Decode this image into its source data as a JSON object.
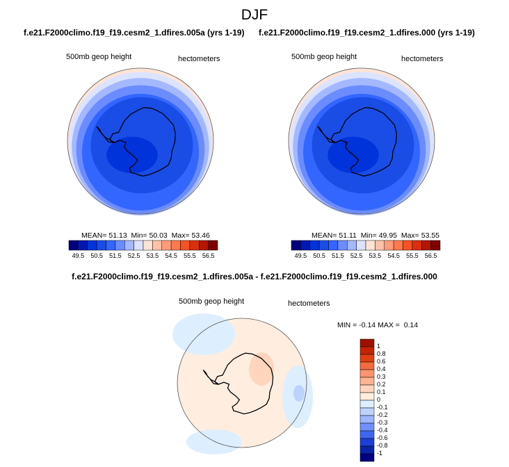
{
  "figure": {
    "title": "DJF"
  },
  "chart_data": [
    {
      "type": "heatmap",
      "title": "f.e21.F2000climo.f19_f19.cesm2_1.dfires.005a (yrs 1-19)",
      "variable": "500mb geop height",
      "units": "hectometers",
      "projection": "polar stereographic, southern hemisphere",
      "stats": {
        "mean_label": "MEAN=",
        "mean": "51.13",
        "min_label": "Min=",
        "min": "50.03",
        "max_label": "Max=",
        "max": "53.46"
      },
      "colorbar": {
        "tick_labels": [
          "49.5",
          "50.5",
          "51.5",
          "52.5",
          "53.5",
          "54.5",
          "55.5",
          "56.5"
        ],
        "colors": [
          "#00007f",
          "#0019b3",
          "#0033d9",
          "#1a4de6",
          "#3366ff",
          "#6b8cff",
          "#a3b8ff",
          "#dbe3ff",
          "#ffe4d6",
          "#ffc2a8",
          "#ff9c7a",
          "#ff7a4d",
          "#f55226",
          "#d93010",
          "#b31700",
          "#7f0000"
        ]
      }
    },
    {
      "type": "heatmap",
      "title": "f.e21.F2000climo.f19_f19.cesm2_1.dfires.000 (yrs 1-19)",
      "variable": "500mb geop height",
      "units": "hectometers",
      "projection": "polar stereographic, southern hemisphere",
      "stats": {
        "mean_label": "MEAN=",
        "mean": "51.11",
        "min_label": "Min=",
        "min": "49.95",
        "max_label": "Max=",
        "max": "53.55"
      },
      "colorbar": {
        "tick_labels": [
          "49.5",
          "50.5",
          "51.5",
          "52.5",
          "53.5",
          "54.5",
          "55.5",
          "56.5"
        ],
        "colors": [
          "#00007f",
          "#0019b3",
          "#0033d9",
          "#1a4de6",
          "#3366ff",
          "#6b8cff",
          "#a3b8ff",
          "#dbe3ff",
          "#ffe4d6",
          "#ffc2a8",
          "#ff9c7a",
          "#ff7a4d",
          "#f55226",
          "#d93010",
          "#b31700",
          "#7f0000"
        ]
      }
    },
    {
      "type": "heatmap",
      "title": "f.e21.F2000climo.f19_f19.cesm2_1.dfires.005a - f.e21.F2000climo.f19_f19.cesm2_1.dfires.000",
      "variable": "500mb geop height",
      "units": "hectometers",
      "projection": "polar stereographic, southern hemisphere",
      "stats": {
        "min_label": "MIN =",
        "min": "-0.14",
        "max_label": "MAX =",
        "max": "0.14"
      },
      "colorbar": {
        "orientation": "vertical",
        "tick_labels": [
          "1",
          "0.8",
          "0.6",
          "0.4",
          "0.3",
          "0.2",
          "0.1",
          "0",
          "-0.1",
          "-0.2",
          "-0.3",
          "-0.4",
          "-0.6",
          "-0.8",
          "-1"
        ],
        "colors": [
          "#a01000",
          "#c42400",
          "#e04010",
          "#f56a40",
          "#ff9470",
          "#ffb494",
          "#ffd5bd",
          "#ffeee0",
          "#ddeeff",
          "#bed2ff",
          "#9cb6ff",
          "#7090ff",
          "#3f66f2",
          "#1d3fd6",
          "#0b22a8",
          "#000080"
        ]
      }
    }
  ]
}
